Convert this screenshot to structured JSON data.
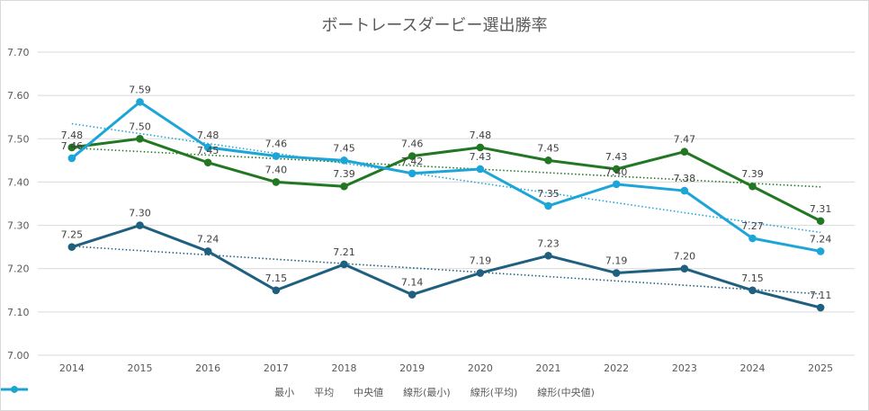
{
  "chart_data": {
    "type": "line",
    "title": "ボートレースダービー選出勝率",
    "categories": [
      "2014",
      "2015",
      "2016",
      "2017",
      "2018",
      "2019",
      "2020",
      "2021",
      "2022",
      "2023",
      "2024",
      "2025"
    ],
    "ylim": [
      7.0,
      7.7
    ],
    "yticks": [
      "7.00",
      "7.10",
      "7.20",
      "7.30",
      "7.40",
      "7.50",
      "7.60",
      "7.70"
    ],
    "grid": true,
    "legend_position": "bottom",
    "series": [
      {
        "name": "最小",
        "color": "#1f5f7f",
        "values": [
          7.25,
          7.3,
          7.24,
          7.15,
          7.21,
          7.14,
          7.19,
          7.23,
          7.19,
          7.2,
          7.15,
          7.11
        ]
      },
      {
        "name": "平均",
        "color": "#227722",
        "values": [
          7.48,
          7.5,
          7.445,
          7.4,
          7.39,
          7.46,
          7.48,
          7.45,
          7.43,
          7.47,
          7.39,
          7.31
        ],
        "labels": [
          "7.48",
          "7.50",
          "7.45",
          "7.40",
          "7.39",
          "7.46",
          "7.48",
          "7.45",
          "7.43",
          "7.47",
          "7.39",
          "7.31"
        ]
      },
      {
        "name": "中央値",
        "color": "#1ea5d8",
        "values": [
          7.455,
          7.585,
          7.48,
          7.46,
          7.45,
          7.42,
          7.43,
          7.345,
          7.395,
          7.38,
          7.27,
          7.24
        ],
        "labels": [
          "7.46",
          "7.59",
          "7.48",
          "7.46",
          "7.45",
          "7.42",
          "7.43",
          "7.35",
          "7.40",
          "7.38",
          "7.27",
          "7.24"
        ]
      }
    ],
    "trendlines": [
      {
        "name": "線形(最小)",
        "color": "#1f5f7f"
      },
      {
        "name": "線形(平均)",
        "color": "#227722"
      },
      {
        "name": "線形(中央値)",
        "color": "#1ea5d8"
      }
    ]
  }
}
